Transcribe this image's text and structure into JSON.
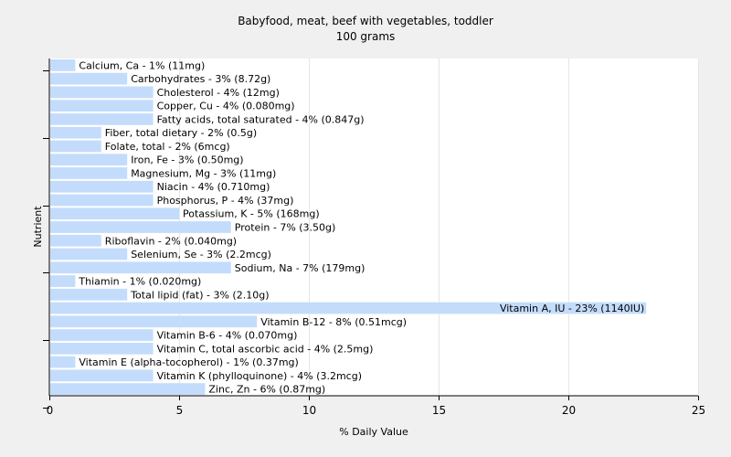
{
  "chart_data": {
    "type": "bar",
    "orientation": "horizontal",
    "title": "Babyfood, meat, beef with vegetables, toddler",
    "subtitle": "100 grams",
    "xlabel": "% Daily Value",
    "ylabel": "Nutrient",
    "xlim": [
      0,
      25
    ],
    "xticks": [
      0,
      5,
      10,
      15,
      20,
      25
    ],
    "grid": true,
    "bar_color": "#c4dcfc",
    "categories": [
      "Calcium, Ca - 1% (11mg)",
      "Carbohydrates - 3% (8.72g)",
      "Cholesterol - 4% (12mg)",
      "Copper, Cu - 4% (0.080mg)",
      "Fatty acids, total saturated - 4% (0.847g)",
      "Fiber, total dietary - 2% (0.5g)",
      "Folate, total - 2% (6mcg)",
      "Iron, Fe - 3% (0.50mg)",
      "Magnesium, Mg - 3% (11mg)",
      "Niacin - 4% (0.710mg)",
      "Phosphorus, P - 4% (37mg)",
      "Potassium, K - 5% (168mg)",
      "Protein - 7% (3.50g)",
      "Riboflavin - 2% (0.040mg)",
      "Selenium, Se - 3% (2.2mcg)",
      "Sodium, Na - 7% (179mg)",
      "Thiamin - 1% (0.020mg)",
      "Total lipid (fat) - 3% (2.10g)",
      "Vitamin A, IU - 23% (1140IU)",
      "Vitamin B-12 - 8% (0.51mcg)",
      "Vitamin B-6 - 4% (0.070mg)",
      "Vitamin C, total ascorbic acid - 4% (2.5mg)",
      "Vitamin E (alpha-tocopherol) - 1% (0.37mg)",
      "Vitamin K (phylloquinone) - 4% (3.2mcg)",
      "Zinc, Zn - 6% (0.87mg)"
    ],
    "values": [
      1,
      3,
      4,
      4,
      4,
      2,
      2,
      3,
      3,
      4,
      4,
      5,
      7,
      2,
      3,
      7,
      1,
      3,
      23,
      8,
      4,
      4,
      1,
      4,
      6
    ]
  }
}
